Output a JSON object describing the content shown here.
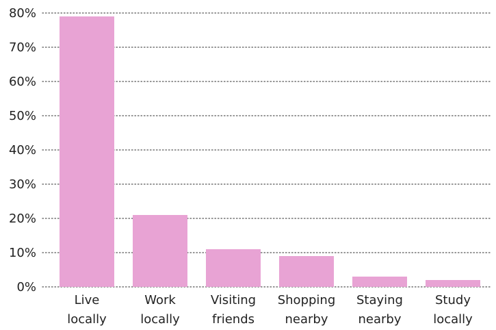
{
  "chart_data": {
    "type": "bar",
    "title": "",
    "xlabel": "",
    "ylabel": "",
    "categories": [
      [
        "Live",
        "locally"
      ],
      [
        "Work",
        "locally"
      ],
      [
        "Visiting",
        "friends"
      ],
      [
        "Shopping",
        "nearby"
      ],
      [
        "Staying",
        "nearby"
      ],
      [
        "Study",
        "locally"
      ]
    ],
    "values": [
      79,
      21,
      11,
      9,
      3,
      2
    ],
    "ylim": [
      0,
      80
    ],
    "yticks": [
      0,
      10,
      20,
      30,
      40,
      50,
      60,
      70,
      80
    ],
    "ytick_labels": [
      "0%",
      "10%",
      "20%",
      "30%",
      "40%",
      "50%",
      "60%",
      "70%",
      "80%"
    ],
    "grid": true,
    "grid_style": "dotted",
    "legend": "none",
    "colors": {
      "bar": "#e8a3d4",
      "grid": "#555555",
      "text": "#222222"
    }
  }
}
